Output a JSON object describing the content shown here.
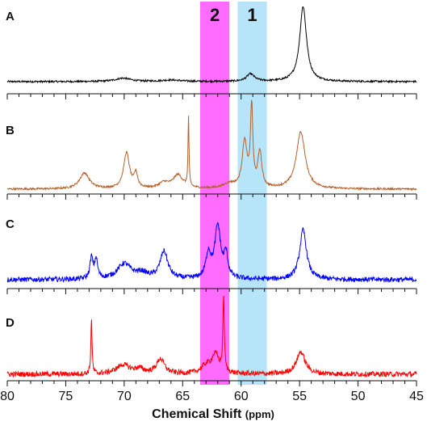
{
  "chart_data": {
    "type": "line",
    "title": "",
    "xlabel": "Chemical Shift",
    "xlabel_unit": "(ppm)",
    "ylabel": "",
    "x_axis_reversed": true,
    "xlim": [
      80,
      45
    ],
    "x_ticks": [
      "80",
      "75",
      "70",
      "65",
      "60",
      "55",
      "50",
      "45"
    ],
    "grid": false,
    "legend": "none",
    "bands": [
      {
        "label": "2",
        "from": 63.5,
        "to": 61.0,
        "color": "#ff33ff",
        "opacity": 0.72
      },
      {
        "label": "1",
        "from": 60.3,
        "to": 57.8,
        "color": "#8fd6f5",
        "opacity": 0.65
      }
    ],
    "panels": [
      {
        "label": "A",
        "color": "#000000",
        "noise": 0.012,
        "peaks": [
          {
            "x": 54.7,
            "height": 1.0,
            "width": 0.35
          },
          {
            "x": 59.2,
            "height": 0.1,
            "width": 0.4
          },
          {
            "x": 70.1,
            "height": 0.045,
            "width": 0.8
          },
          {
            "x": 66.0,
            "height": 0.02,
            "width": 1.0
          }
        ]
      },
      {
        "label": "B",
        "color": "#b5602a",
        "noise": 0.012,
        "peaks": [
          {
            "x": 64.5,
            "height": 0.88,
            "width": 0.05
          },
          {
            "x": 59.1,
            "height": 1.0,
            "width": 0.12
          },
          {
            "x": 59.7,
            "height": 0.58,
            "width": 0.25
          },
          {
            "x": 58.4,
            "height": 0.45,
            "width": 0.2
          },
          {
            "x": 54.9,
            "height": 0.72,
            "width": 0.45
          },
          {
            "x": 69.8,
            "height": 0.45,
            "width": 0.3
          },
          {
            "x": 69.0,
            "height": 0.18,
            "width": 0.18
          },
          {
            "x": 73.4,
            "height": 0.2,
            "width": 0.5
          },
          {
            "x": 65.4,
            "height": 0.17,
            "width": 0.5
          },
          {
            "x": 66.6,
            "height": 0.07,
            "width": 0.5
          },
          {
            "x": 61.0,
            "height": 0.06,
            "width": 0.6
          }
        ]
      },
      {
        "label": "C",
        "color": "#0000ff",
        "noise": 0.045,
        "peaks": [
          {
            "x": 54.7,
            "height": 0.9,
            "width": 0.35
          },
          {
            "x": 62.0,
            "height": 0.95,
            "width": 0.3
          },
          {
            "x": 62.8,
            "height": 0.45,
            "width": 0.25
          },
          {
            "x": 61.3,
            "height": 0.42,
            "width": 0.2
          },
          {
            "x": 66.6,
            "height": 0.5,
            "width": 0.4
          },
          {
            "x": 72.8,
            "height": 0.38,
            "width": 0.15
          },
          {
            "x": 72.4,
            "height": 0.35,
            "width": 0.15
          },
          {
            "x": 70.0,
            "height": 0.28,
            "width": 0.7
          },
          {
            "x": 68.5,
            "height": 0.1,
            "width": 0.6
          }
        ]
      },
      {
        "label": "D",
        "color": "#ff0000",
        "noise": 0.035,
        "peaks": [
          {
            "x": 61.5,
            "height": 1.0,
            "width": 0.07
          },
          {
            "x": 72.8,
            "height": 0.73,
            "width": 0.06
          },
          {
            "x": 62.2,
            "height": 0.25,
            "width": 0.4
          },
          {
            "x": 66.9,
            "height": 0.2,
            "width": 0.4
          },
          {
            "x": 54.9,
            "height": 0.3,
            "width": 0.45
          },
          {
            "x": 70.1,
            "height": 0.12,
            "width": 0.7
          },
          {
            "x": 63.0,
            "height": 0.1,
            "width": 0.5
          },
          {
            "x": 68.7,
            "height": 0.06,
            "width": 0.5
          }
        ]
      }
    ]
  }
}
